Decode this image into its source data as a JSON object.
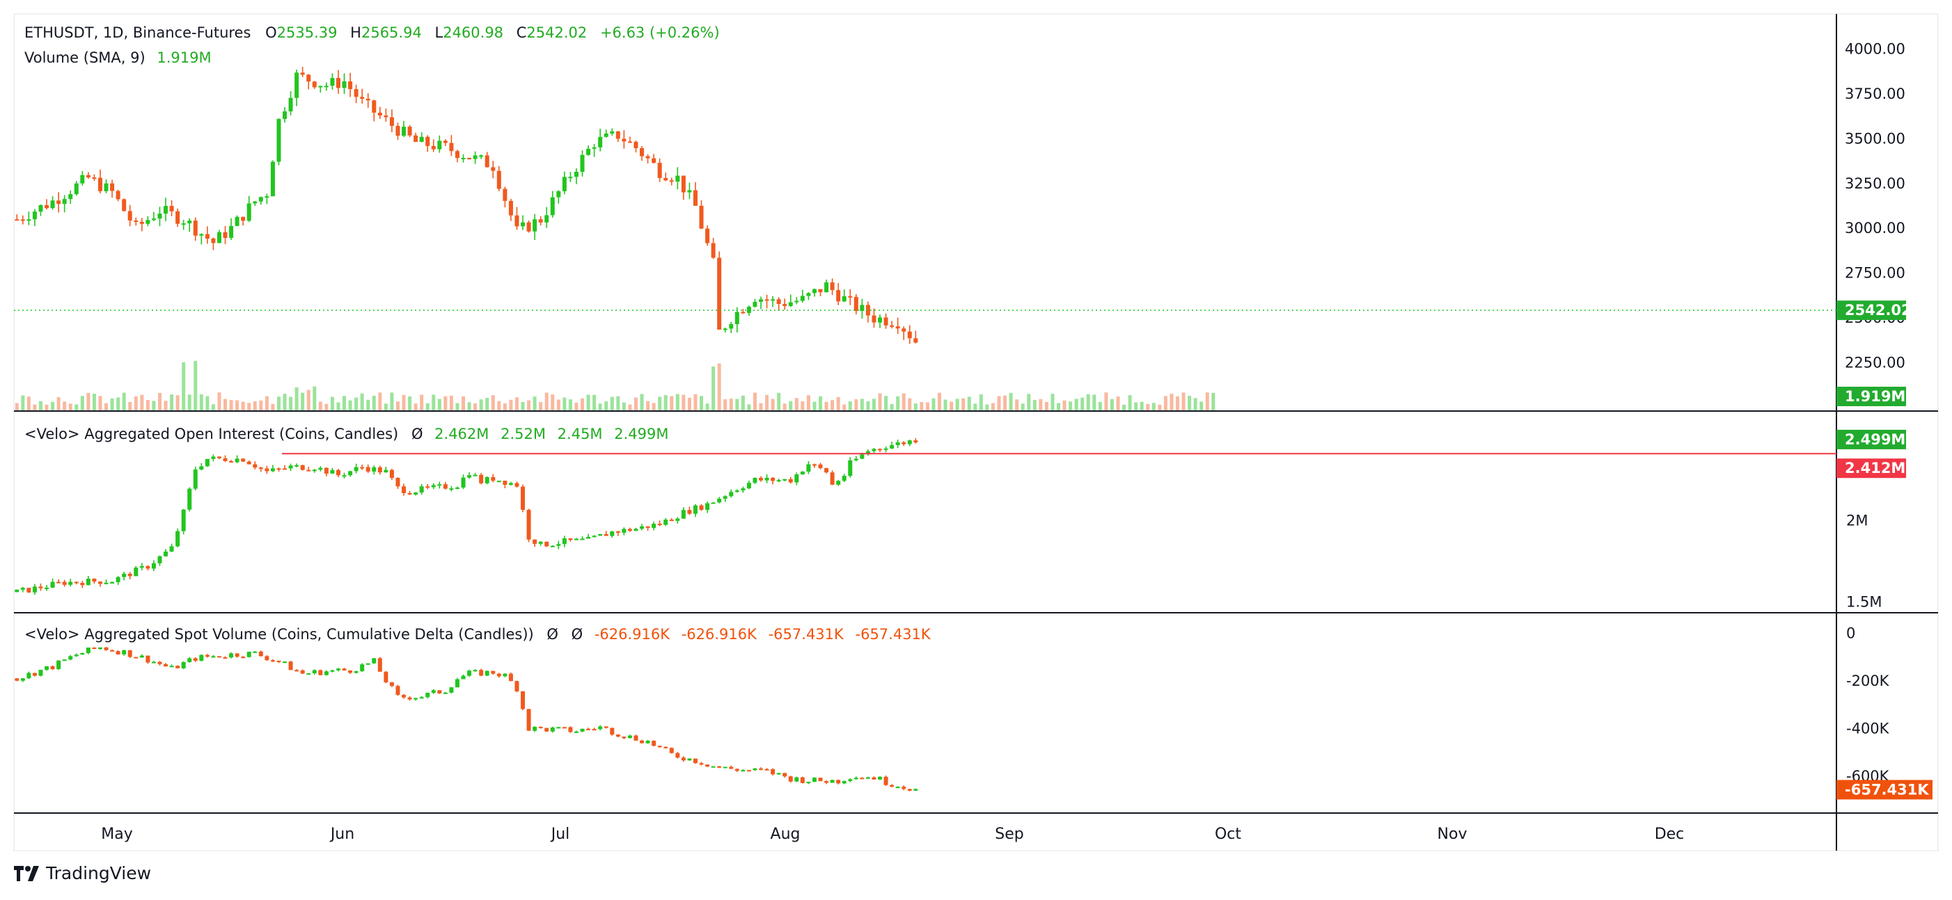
{
  "colors": {
    "up": "#22c51f",
    "down": "#f05a1e",
    "vol_up": "#9be39b",
    "vol_down": "#f8b9a0",
    "last_label": "#22ab2e",
    "support_line": "#f23645",
    "support_label": "#f23645",
    "cvd_label": "#f0520c",
    "grid_border": "#131722"
  },
  "header": {
    "symbol": "ETHUSDT, 1D, Binance-Futures",
    "open_label": "O",
    "open": "2535.39",
    "high_label": "H",
    "high": "2565.94",
    "low_label": "L",
    "low": "2460.98",
    "close_label": "C",
    "close": "2542.02",
    "change": "+6.63 (+0.26%)"
  },
  "volume_legend": {
    "label": "Volume (SMA, 9)",
    "value": "1.919M"
  },
  "oi_legend": {
    "label": "<Velo> Aggregated Open Interest (Coins, Candles)",
    "symbol": "Ø",
    "o": "2.462M",
    "h": "2.52M",
    "l": "2.45M",
    "c": "2.499M"
  },
  "spot_legend": {
    "label": "<Velo> Aggregated Spot Volume (Coins, Cumulative Delta (Candles))",
    "symbol1": "Ø",
    "symbol2": "Ø",
    "o": "-626.916K",
    "h": "-626.916K",
    "l": "-657.431K",
    "c": "-657.431K"
  },
  "brand": {
    "name": "TradingView"
  },
  "chart_data": [
    {
      "type": "candlestick",
      "title": "ETHUSDT, 1D, Binance-Futures",
      "x_labels": [
        "May",
        "Jun",
        "Jul",
        "Aug",
        "Sep",
        "Oct",
        "Nov",
        "Dec"
      ],
      "y_ticks": [
        "2250.00",
        "2500.00",
        "2750.00",
        "3000.00",
        "3250.00",
        "3500.00",
        "3750.00",
        "4000.00"
      ],
      "ylim": [
        2100,
        4080
      ],
      "last_price": "2542.02",
      "last_price_value": 2542.02,
      "volume_last": "1.919M",
      "anchors": [
        [
          0,
          3050
        ],
        [
          6,
          3150
        ],
        [
          12,
          3280
        ],
        [
          16,
          3200
        ],
        [
          20,
          3000
        ],
        [
          24,
          3100
        ],
        [
          28,
          3050
        ],
        [
          33,
          2920
        ],
        [
          36,
          3000
        ],
        [
          40,
          3150
        ],
        [
          42,
          3200
        ],
        [
          44,
          3600
        ],
        [
          47,
          3850
        ],
        [
          52,
          3800
        ],
        [
          55,
          3820
        ],
        [
          58,
          3700
        ],
        [
          62,
          3600
        ],
        [
          67,
          3480
        ],
        [
          72,
          3450
        ],
        [
          76,
          3400
        ],
        [
          80,
          3350
        ],
        [
          84,
          2980
        ],
        [
          88,
          3050
        ],
        [
          93,
          3300
        ],
        [
          97,
          3480
        ],
        [
          101,
          3520
        ],
        [
          104,
          3450
        ],
        [
          108,
          3320
        ],
        [
          111,
          3280
        ],
        [
          114,
          3120
        ],
        [
          117,
          2800
        ],
        [
          118,
          2420
        ],
        [
          120,
          2500
        ],
        [
          124,
          2620
        ],
        [
          128,
          2580
        ],
        [
          132,
          2600
        ],
        [
          136,
          2680
        ],
        [
          140,
          2580
        ],
        [
          144,
          2500
        ],
        [
          148,
          2480
        ],
        [
          151,
          2370
        ],
        [
          154,
          2330
        ],
        [
          158,
          2310
        ],
        [
          163,
          2400
        ],
        [
          167,
          2550
        ],
        [
          171,
          2620
        ],
        [
          174,
          2650
        ],
        [
          178,
          2440
        ],
        [
          182,
          2420
        ],
        [
          186,
          2450
        ],
        [
          190,
          2620
        ],
        [
          193,
          2700
        ],
        [
          196,
          2780
        ],
        [
          199,
          2580
        ],
        [
          201,
          2542
        ]
      ]
    },
    {
      "type": "candlestick",
      "title": "<Velo> Aggregated Open Interest (Coins, Candles)",
      "y_ticks": [
        "1.5M",
        "2M"
      ],
      "ylim": [
        1.48,
        2.55
      ],
      "last_value": "2.499M",
      "last_value_num": 2.499,
      "support_level": "2.412M",
      "support_value": 2.412,
      "anchors": [
        [
          0,
          1.56
        ],
        [
          8,
          1.62
        ],
        [
          16,
          1.63
        ],
        [
          22,
          1.72
        ],
        [
          26,
          1.83
        ],
        [
          28,
          2.05
        ],
        [
          30,
          2.32
        ],
        [
          32,
          2.38
        ],
        [
          38,
          2.38
        ],
        [
          42,
          2.3
        ],
        [
          46,
          2.33
        ],
        [
          50,
          2.33
        ],
        [
          54,
          2.28
        ],
        [
          58,
          2.33
        ],
        [
          62,
          2.3
        ],
        [
          64,
          2.2
        ],
        [
          66,
          2.18
        ],
        [
          70,
          2.2
        ],
        [
          74,
          2.22
        ],
        [
          76,
          2.3
        ],
        [
          78,
          2.24
        ],
        [
          80,
          2.26
        ],
        [
          84,
          2.22
        ],
        [
          86,
          1.9
        ],
        [
          88,
          1.85
        ],
        [
          92,
          1.87
        ],
        [
          96,
          1.88
        ],
        [
          100,
          1.93
        ],
        [
          104,
          1.95
        ],
        [
          108,
          1.98
        ],
        [
          112,
          2.05
        ],
        [
          116,
          2.1
        ],
        [
          120,
          2.18
        ],
        [
          124,
          2.25
        ],
        [
          127,
          2.25
        ],
        [
          130,
          2.25
        ],
        [
          133,
          2.35
        ],
        [
          136,
          2.3
        ],
        [
          137,
          2.22
        ],
        [
          139,
          2.28
        ],
        [
          140,
          2.35
        ],
        [
          143,
          2.43
        ],
        [
          146,
          2.46
        ],
        [
          149,
          2.48
        ],
        [
          151,
          2.499
        ]
      ]
    },
    {
      "type": "candlestick",
      "title": "<Velo> Aggregated Spot Volume (Coins, Cumulative Delta (Candles))",
      "y_ticks": [
        "0",
        "-200K",
        "-400K",
        "-600K"
      ],
      "ylim": [
        -700,
        30
      ],
      "last_value": "-657.431K",
      "last_value_num": -657.431,
      "anchors": [
        [
          0,
          -190
        ],
        [
          6,
          -140
        ],
        [
          10,
          -90
        ],
        [
          14,
          -60
        ],
        [
          18,
          -80
        ],
        [
          22,
          -110
        ],
        [
          26,
          -150
        ],
        [
          30,
          -105
        ],
        [
          36,
          -90
        ],
        [
          40,
          -85
        ],
        [
          44,
          -120
        ],
        [
          48,
          -170
        ],
        [
          52,
          -160
        ],
        [
          56,
          -155
        ],
        [
          60,
          -120
        ],
        [
          62,
          -200
        ],
        [
          64,
          -270
        ],
        [
          68,
          -265
        ],
        [
          72,
          -240
        ],
        [
          74,
          -190
        ],
        [
          76,
          -170
        ],
        [
          80,
          -165
        ],
        [
          82,
          -180
        ],
        [
          84,
          -230
        ],
        [
          86,
          -400
        ],
        [
          90,
          -405
        ],
        [
          94,
          -410
        ],
        [
          98,
          -395
        ],
        [
          102,
          -430
        ],
        [
          106,
          -455
        ],
        [
          110,
          -510
        ],
        [
          114,
          -535
        ],
        [
          118,
          -565
        ],
        [
          122,
          -575
        ],
        [
          126,
          -580
        ],
        [
          130,
          -610
        ],
        [
          134,
          -620
        ],
        [
          138,
          -620
        ],
        [
          140,
          -600
        ],
        [
          144,
          -605
        ],
        [
          146,
          -625
        ],
        [
          151,
          -657.431
        ]
      ]
    }
  ]
}
